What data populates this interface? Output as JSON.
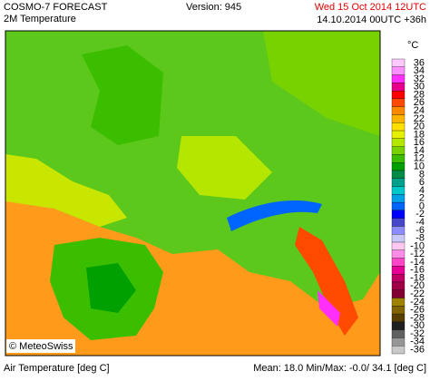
{
  "header": {
    "title": "COSMO-7 FORECAST",
    "subtitle": "2M Temperature",
    "version": "Version: 945",
    "valid_time": "Wed 15 Oct 2014 12UTC",
    "run": "14.10.2014 00UTC +36h"
  },
  "map": {
    "credit": "© MeteoSwiss"
  },
  "legend": {
    "unit": "°C",
    "items": [
      {
        "label": 36,
        "color": "#ffc8ff"
      },
      {
        "label": 34,
        "color": "#ff90ff"
      },
      {
        "label": 32,
        "color": "#ff30ff"
      },
      {
        "label": 30,
        "color": "#e8008c"
      },
      {
        "label": 28,
        "color": "#ff0000"
      },
      {
        "label": 26,
        "color": "#ff4a00"
      },
      {
        "label": 24,
        "color": "#ff8a00"
      },
      {
        "label": 22,
        "color": "#ffb400"
      },
      {
        "label": 20,
        "color": "#ffe000"
      },
      {
        "label": 18,
        "color": "#e6f000"
      },
      {
        "label": 16,
        "color": "#b4e600"
      },
      {
        "label": 14,
        "color": "#78d200"
      },
      {
        "label": 12,
        "color": "#3cbe00"
      },
      {
        "label": 10,
        "color": "#00a000"
      },
      {
        "label": 8,
        "color": "#008c46"
      },
      {
        "label": 6,
        "color": "#00a08c"
      },
      {
        "label": 4,
        "color": "#00c8c8"
      },
      {
        "label": 2,
        "color": "#00a0e6"
      },
      {
        "label": 0,
        "color": "#0064ff"
      },
      {
        "label": -2,
        "color": "#0000ff"
      },
      {
        "label": -4,
        "color": "#4646c8"
      },
      {
        "label": -6,
        "color": "#8c8cff"
      },
      {
        "label": -8,
        "color": "#c8c8ff"
      },
      {
        "label": -10,
        "color": "#ffc8f0"
      },
      {
        "label": -12,
        "color": "#ff8ce6"
      },
      {
        "label": -14,
        "color": "#ff46c8"
      },
      {
        "label": -16,
        "color": "#e60096"
      },
      {
        "label": -18,
        "color": "#be0064"
      },
      {
        "label": -20,
        "color": "#a00046"
      },
      {
        "label": -22,
        "color": "#820032"
      },
      {
        "label": -24,
        "color": "#a08200"
      },
      {
        "label": -26,
        "color": "#826400"
      },
      {
        "label": -28,
        "color": "#5a4000"
      },
      {
        "label": -30,
        "color": "#202020"
      },
      {
        "label": -32,
        "color": "#606060"
      },
      {
        "label": -34,
        "color": "#969696"
      },
      {
        "label": -36,
        "color": "#c8c8c8"
      }
    ]
  },
  "footer": {
    "field": "Air Temperature [deg C]",
    "stats": "Mean: 18.0 Min/Max: -0.0/ 34.1 [deg C]"
  }
}
